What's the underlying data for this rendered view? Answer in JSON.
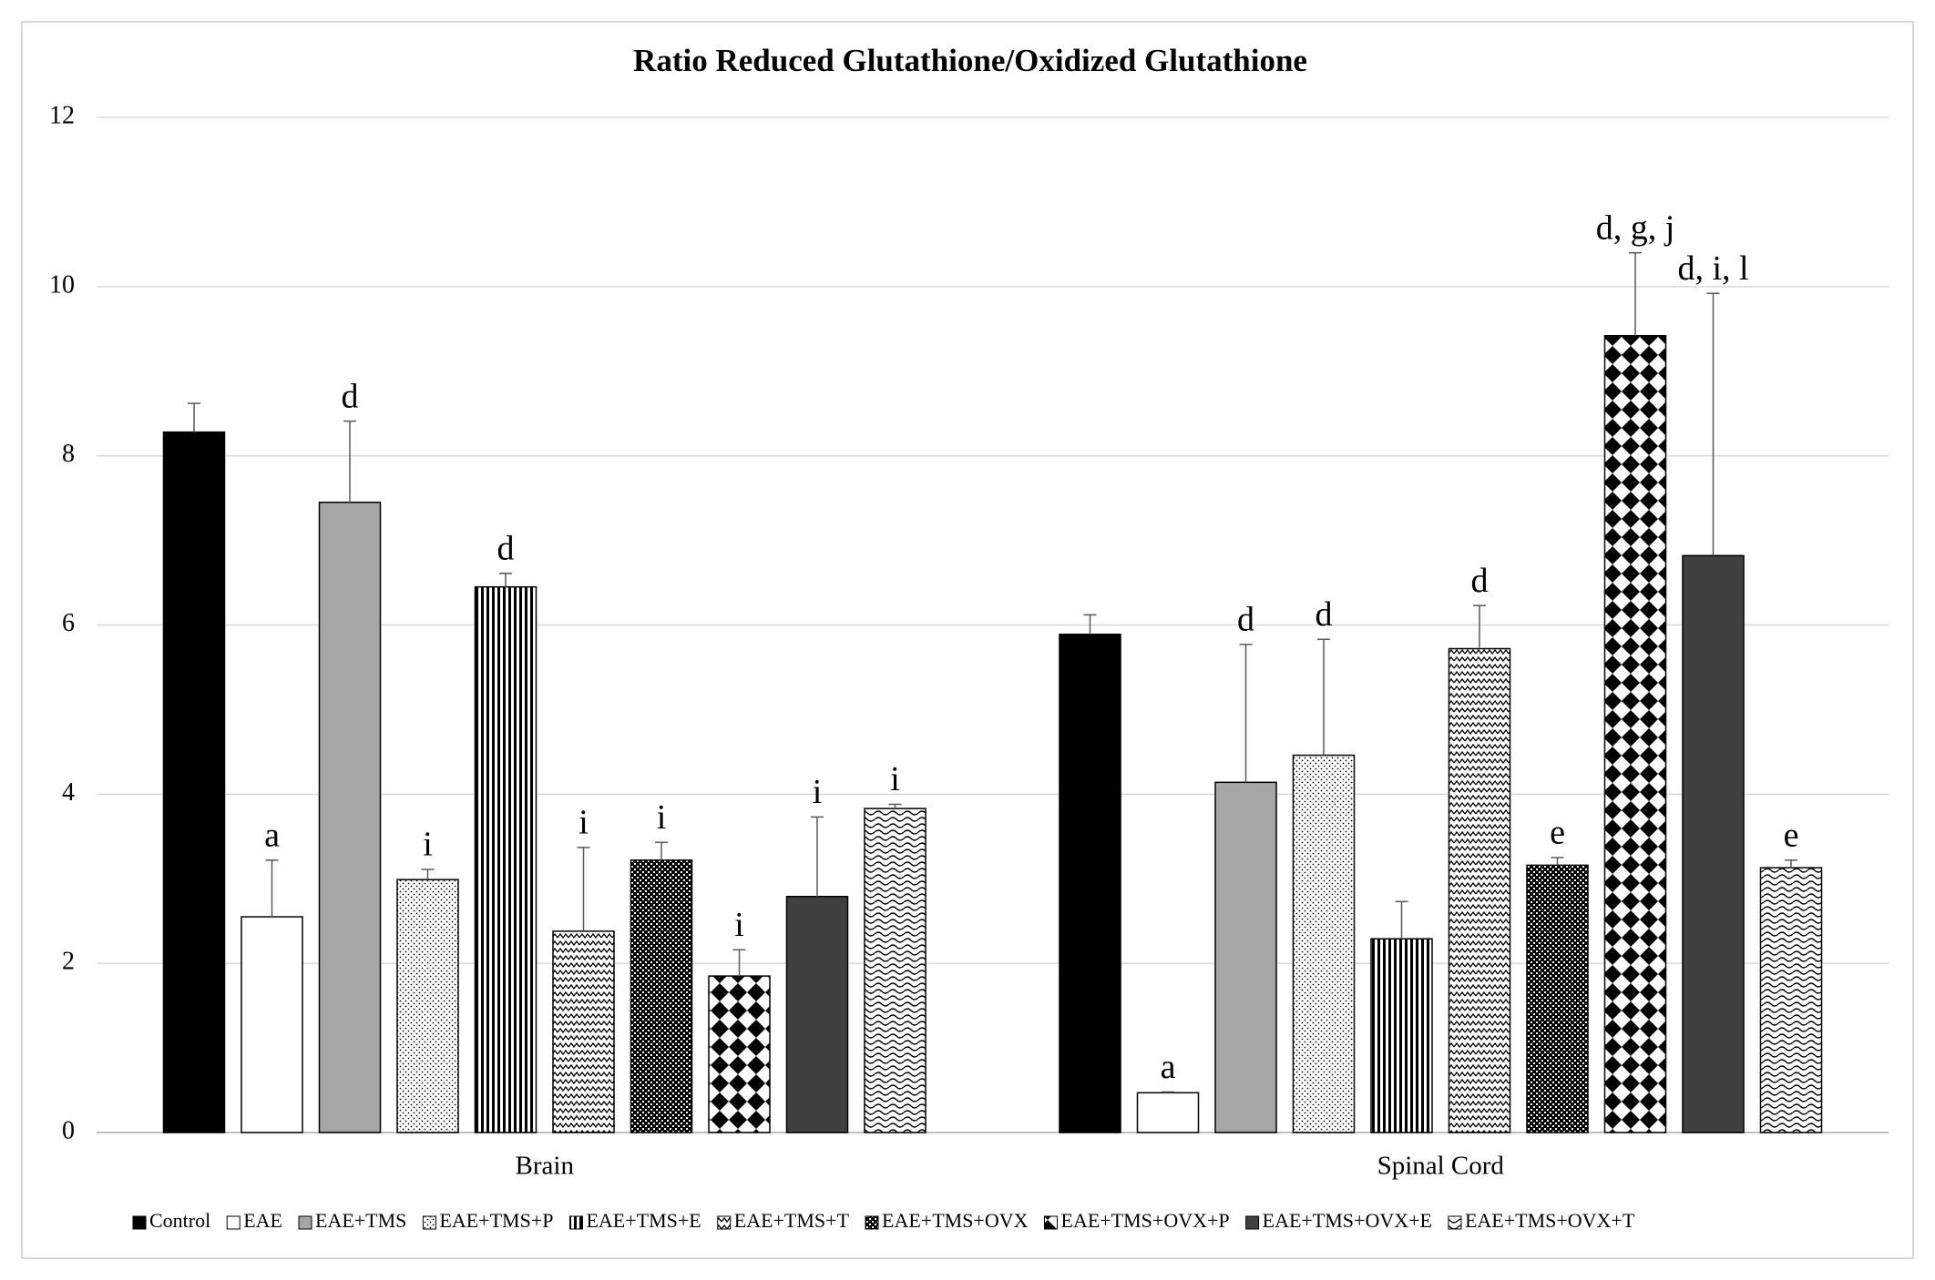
{
  "chart_data": {
    "type": "bar",
    "title": "Ratio Reduced Glutathione/Oxidized Glutathione",
    "categories": [
      "Brain",
      "Spinal Cord"
    ],
    "ylim": [
      0,
      12
    ],
    "yticks": [
      0,
      2,
      4,
      6,
      8,
      10,
      12
    ],
    "grid": true,
    "legend": "bottom",
    "series": [
      {
        "name": "Control",
        "color": "#000000",
        "values": [
          8.28,
          5.89
        ],
        "errors": [
          0.34,
          0.23
        ],
        "labels": [
          null,
          null
        ]
      },
      {
        "name": "EAE",
        "color": "#ffffff",
        "values": [
          2.55,
          0.47
        ],
        "errors": [
          0.67,
          0.01
        ],
        "labels": [
          "a",
          "a"
        ]
      },
      {
        "name": "EAE+TMS",
        "color": "#a6a6a6",
        "values": [
          7.45,
          4.14
        ],
        "errors": [
          0.96,
          1.63
        ],
        "labels": [
          "d",
          "d"
        ]
      },
      {
        "name": "EAE+TMS+P",
        "color": "#000000",
        "pattern": "dots",
        "values": [
          2.99,
          4.46
        ],
        "errors": [
          0.12,
          1.37
        ],
        "labels": [
          "i",
          "d"
        ]
      },
      {
        "name": "EAE+TMS+E",
        "color": "#000000",
        "pattern": "vstripes",
        "values": [
          6.45,
          2.29
        ],
        "errors": [
          0.16,
          0.44
        ],
        "labels": [
          "d",
          null
        ]
      },
      {
        "name": "EAE+TMS+T",
        "color": "#000000",
        "pattern": "zigzag",
        "values": [
          2.38,
          5.72
        ],
        "errors": [
          0.99,
          0.51
        ],
        "labels": [
          "i",
          "d"
        ]
      },
      {
        "name": "EAE+TMS+OVX",
        "color": "#000000",
        "pattern": "checker",
        "values": [
          3.22,
          3.16
        ],
        "errors": [
          0.21,
          0.09
        ],
        "labels": [
          "i",
          "e"
        ]
      },
      {
        "name": "EAE+TMS+OVX+P",
        "color": "#000000",
        "pattern": "diamond",
        "values": [
          1.85,
          9.42
        ],
        "errors": [
          0.31,
          0.98
        ],
        "labels": [
          "i",
          "d, g, j"
        ]
      },
      {
        "name": "EAE+TMS+OVX+E",
        "color": "#404040",
        "values": [
          2.79,
          6.82
        ],
        "errors": [
          0.94,
          3.1
        ],
        "labels": [
          "i",
          "d, i, l"
        ]
      },
      {
        "name": "EAE+TMS+OVX+T",
        "color": "#000000",
        "pattern": "wave",
        "values": [
          3.83,
          3.13
        ],
        "errors": [
          0.05,
          0.09
        ],
        "labels": [
          "i",
          "e"
        ]
      }
    ]
  }
}
